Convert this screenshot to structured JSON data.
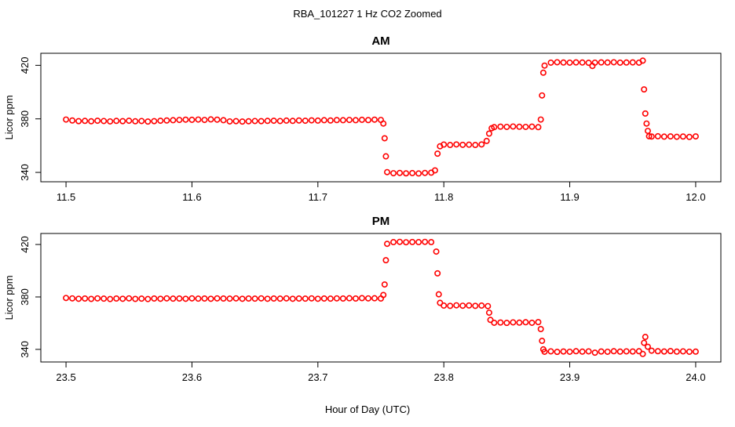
{
  "title": "RBA_101227  1 Hz CO2 Zoomed",
  "x_label": "Hour of Day (UTC)",
  "chart_data": [
    {
      "type": "scatter",
      "title": "AM",
      "y_label": "Licor ppm",
      "color": "#ff0000",
      "xlim": [
        11.48,
        12.02
      ],
      "xticks": [
        11.5,
        11.6,
        11.7,
        11.8,
        11.9,
        {
          "value": 12,
          "label": "12.0"
        }
      ],
      "ylim": [
        333,
        429
      ],
      "yticks": [
        340,
        380,
        420
      ],
      "x": [
        11.5,
        11.505,
        11.51,
        11.515,
        11.52,
        11.525,
        11.53,
        11.535,
        11.54,
        11.545,
        11.55,
        11.555,
        11.56,
        11.565,
        11.57,
        11.575,
        11.58,
        11.585,
        11.59,
        11.595,
        11.6,
        11.605,
        11.61,
        11.615,
        11.62,
        11.625,
        11.63,
        11.635,
        11.64,
        11.645,
        11.65,
        11.655,
        11.66,
        11.665,
        11.67,
        11.675,
        11.68,
        11.685,
        11.69,
        11.695,
        11.7,
        11.705,
        11.71,
        11.715,
        11.72,
        11.725,
        11.73,
        11.735,
        11.74,
        11.745,
        11.75,
        11.752,
        11.753,
        11.754,
        11.755,
        11.76,
        11.765,
        11.77,
        11.775,
        11.78,
        11.785,
        11.79,
        11.793,
        11.795,
        11.797,
        11.8,
        11.805,
        11.81,
        11.815,
        11.82,
        11.825,
        11.83,
        11.834,
        11.836,
        11.838,
        11.84,
        11.845,
        11.85,
        11.855,
        11.86,
        11.865,
        11.87,
        11.875,
        11.877,
        11.878,
        11.879,
        11.88,
        11.885,
        11.89,
        11.895,
        11.9,
        11.905,
        11.91,
        11.915,
        11.918,
        11.92,
        11.925,
        11.93,
        11.935,
        11.94,
        11.945,
        11.95,
        11.955,
        11.958,
        11.959,
        11.96,
        11.961,
        11.962,
        11.963,
        11.965,
        11.97,
        11.975,
        11.98,
        11.985,
        11.99,
        11.995,
        12.0
      ],
      "values": [
        379.5,
        378.8,
        378.3,
        378.5,
        378.2,
        378.6,
        378.4,
        378.1,
        378.5,
        378.3,
        378.6,
        378.2,
        378.4,
        378.0,
        378.3,
        378.6,
        378.8,
        379.0,
        379.2,
        379.4,
        379.3,
        379.5,
        379.2,
        379.6,
        379.4,
        379.0,
        378.1,
        378.3,
        378.0,
        378.2,
        378.4,
        378.3,
        378.5,
        378.6,
        378.4,
        378.7,
        378.5,
        378.8,
        378.6,
        378.9,
        378.7,
        379.0,
        378.8,
        379.1,
        379.0,
        379.2,
        379.0,
        379.3,
        379.1,
        379.4,
        379.2,
        376.5,
        365.5,
        352.0,
        340.2,
        339.4,
        339.6,
        339.3,
        339.5,
        339.2,
        339.6,
        339.8,
        341.5,
        354.0,
        359.5,
        360.8,
        360.5,
        360.9,
        360.6,
        360.7,
        360.5,
        360.9,
        363.5,
        369.0,
        373.0,
        373.8,
        374.2,
        374.0,
        374.3,
        374.1,
        374.0,
        374.2,
        373.8,
        379.5,
        397.5,
        414.5,
        419.8,
        422.0,
        422.3,
        422.1,
        422.0,
        422.2,
        422.1,
        421.9,
        419.5,
        422.0,
        422.2,
        422.1,
        422.3,
        422.0,
        422.1,
        422.2,
        422.0,
        423.5,
        402.0,
        384.0,
        376.5,
        371.0,
        367.0,
        366.8,
        367.0,
        366.7,
        366.9,
        366.6,
        366.8,
        366.5,
        366.9
      ]
    },
    {
      "type": "scatter",
      "title": "PM",
      "y_label": "Licor ppm",
      "color": "#ff0000",
      "xlim": [
        23.48,
        24.02
      ],
      "xticks": [
        23.5,
        23.6,
        23.7,
        23.8,
        23.9,
        {
          "value": 24,
          "label": "24.0"
        }
      ],
      "ylim": [
        330.4,
        428.4
      ],
      "yticks": [
        340,
        380,
        420
      ],
      "x": [
        23.5,
        23.505,
        23.51,
        23.515,
        23.52,
        23.525,
        23.53,
        23.535,
        23.54,
        23.545,
        23.55,
        23.555,
        23.56,
        23.565,
        23.57,
        23.575,
        23.58,
        23.585,
        23.59,
        23.595,
        23.6,
        23.605,
        23.61,
        23.615,
        23.62,
        23.625,
        23.63,
        23.635,
        23.64,
        23.645,
        23.65,
        23.655,
        23.66,
        23.665,
        23.67,
        23.675,
        23.68,
        23.685,
        23.69,
        23.695,
        23.7,
        23.705,
        23.71,
        23.715,
        23.72,
        23.725,
        23.73,
        23.735,
        23.74,
        23.745,
        23.75,
        23.752,
        23.753,
        23.754,
        23.755,
        23.76,
        23.765,
        23.77,
        23.775,
        23.78,
        23.785,
        23.79,
        23.794,
        23.795,
        23.796,
        23.797,
        23.8,
        23.805,
        23.81,
        23.815,
        23.82,
        23.825,
        23.83,
        23.835,
        23.836,
        23.837,
        23.84,
        23.845,
        23.85,
        23.855,
        23.86,
        23.865,
        23.87,
        23.875,
        23.877,
        23.878,
        23.879,
        23.88,
        23.885,
        23.89,
        23.895,
        23.9,
        23.905,
        23.91,
        23.915,
        23.92,
        23.925,
        23.93,
        23.935,
        23.94,
        23.945,
        23.95,
        23.955,
        23.958,
        23.959,
        23.96,
        23.962,
        23.965,
        23.97,
        23.975,
        23.98,
        23.985,
        23.99,
        23.995,
        24.0
      ],
      "values": [
        379.2,
        378.9,
        378.6,
        378.8,
        378.5,
        378.9,
        378.7,
        378.4,
        378.8,
        378.6,
        378.9,
        378.5,
        378.7,
        378.4,
        378.8,
        378.6,
        378.9,
        378.7,
        378.8,
        378.6,
        378.9,
        378.7,
        378.8,
        378.6,
        378.9,
        378.8,
        378.7,
        378.9,
        378.6,
        378.8,
        378.7,
        378.9,
        378.6,
        378.8,
        378.7,
        378.9,
        378.6,
        378.8,
        378.7,
        378.9,
        378.6,
        378.8,
        378.7,
        378.9,
        378.8,
        379.0,
        378.8,
        379.1,
        378.9,
        379.0,
        378.8,
        381.5,
        389.5,
        408.0,
        420.5,
        421.8,
        422.0,
        421.7,
        421.9,
        421.8,
        422.0,
        421.8,
        414.6,
        398.0,
        382.0,
        375.5,
        373.4,
        373.2,
        373.6,
        373.3,
        373.5,
        373.2,
        373.4,
        373.0,
        368.0,
        362.5,
        360.3,
        360.5,
        360.2,
        360.6,
        360.4,
        360.7,
        360.3,
        360.8,
        355.5,
        346.5,
        340.0,
        338.2,
        338.5,
        338.1,
        338.4,
        338.2,
        338.6,
        338.3,
        338.5,
        337.5,
        338.4,
        338.2,
        338.6,
        338.3,
        338.5,
        338.4,
        338.6,
        336.5,
        345.0,
        349.5,
        342.0,
        339.0,
        338.6,
        338.4,
        338.7,
        338.3,
        338.5,
        338.2,
        338.3
      ]
    }
  ]
}
